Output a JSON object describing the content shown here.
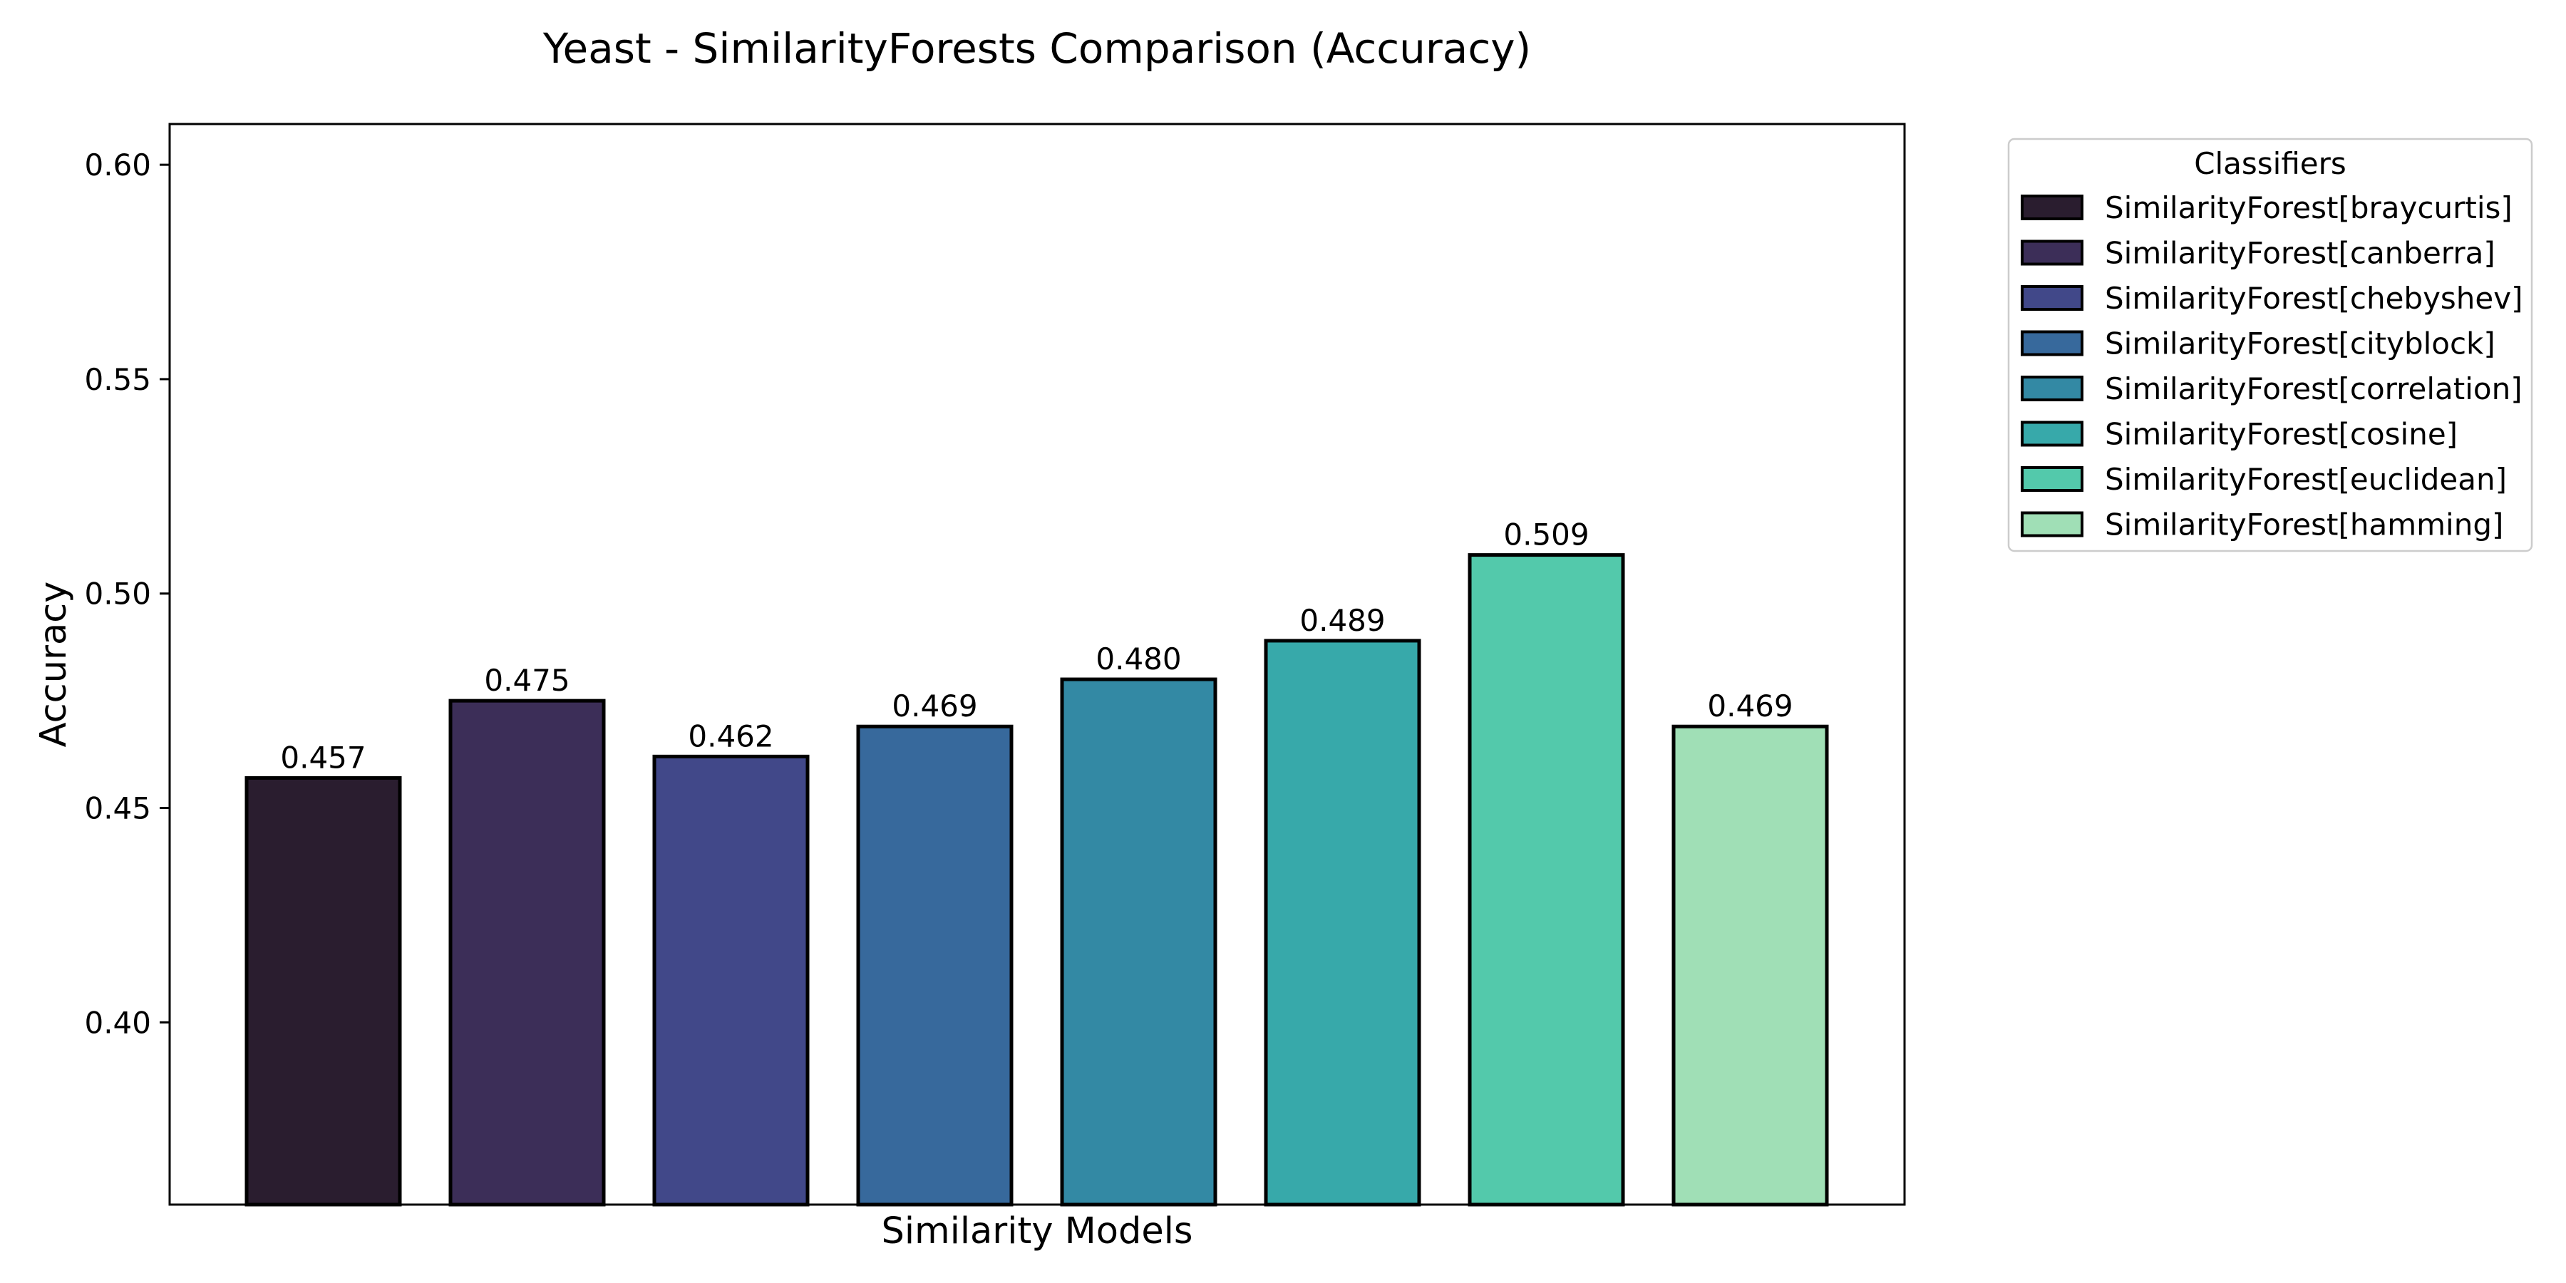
{
  "chart_data": {
    "type": "bar",
    "title": "Yeast - SimilarityForests Comparison (Accuracy)",
    "xlabel": "Similarity Models",
    "ylabel": "Accuracy",
    "ylim": [
      0.3575,
      0.6095
    ],
    "yticks": [
      0.4,
      0.45,
      0.5,
      0.55,
      0.6
    ],
    "ytick_labels": [
      "0.40",
      "0.45",
      "0.50",
      "0.55",
      "0.60"
    ],
    "grid": false,
    "legend": {
      "title": "Classifiers",
      "placement": "outside-top-right"
    },
    "categories": [
      "SimilarityForest[braycurtis]",
      "SimilarityForest[canberra]",
      "SimilarityForest[chebyshev]",
      "SimilarityForest[cityblock]",
      "SimilarityForest[correlation]",
      "SimilarityForest[cosine]",
      "SimilarityForest[euclidean]",
      "SimilarityForest[hamming]"
    ],
    "values": [
      0.457,
      0.475,
      0.462,
      0.469,
      0.48,
      0.489,
      0.509,
      0.469
    ],
    "value_labels": [
      "0.457",
      "0.475",
      "0.462",
      "0.469",
      "0.480",
      "0.489",
      "0.509",
      "0.469"
    ],
    "colors": [
      "#2a1d2f",
      "#3c2e58",
      "#414889",
      "#37699c",
      "#3389a4",
      "#37a9aa",
      "#53c9ab",
      "#a0dfb6"
    ],
    "edge_color": "#000000"
  }
}
